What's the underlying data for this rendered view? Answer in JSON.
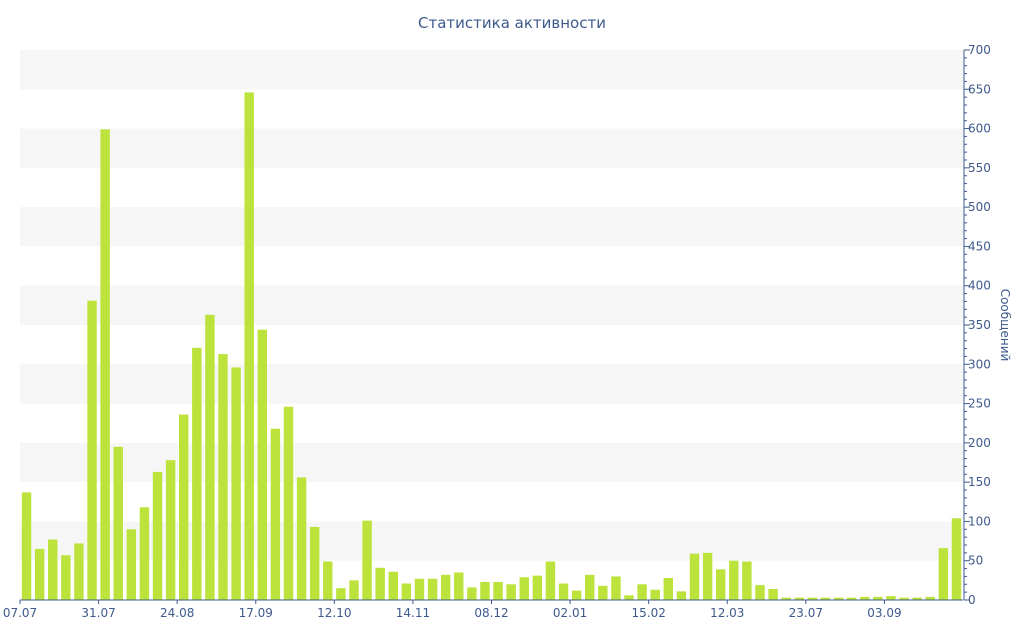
{
  "chart_data": {
    "type": "bar",
    "title": "Статистика активности",
    "ylabel": "Сообщений",
    "xlabel": "",
    "ylim": [
      0,
      700
    ],
    "y_ticks": [
      0,
      50,
      100,
      150,
      200,
      250,
      300,
      350,
      400,
      450,
      500,
      550,
      600,
      650,
      700
    ],
    "y_axis_side": "right",
    "x_tick_labels": [
      {
        "index": 0,
        "label": "07.07"
      },
      {
        "index": 6,
        "label": "31.07"
      },
      {
        "index": 12,
        "label": "24.08"
      },
      {
        "index": 18,
        "label": "17.09"
      },
      {
        "index": 24,
        "label": "12.10"
      },
      {
        "index": 30,
        "label": "14.11"
      },
      {
        "index": 36,
        "label": "08.12"
      },
      {
        "index": 42,
        "label": "02.01"
      },
      {
        "index": 48,
        "label": "15.02"
      },
      {
        "index": 54,
        "label": "12.03"
      },
      {
        "index": 60,
        "label": "23.07"
      },
      {
        "index": 66,
        "label": "03.09"
      }
    ],
    "values": [
      137,
      65,
      77,
      57,
      72,
      381,
      599,
      195,
      90,
      118,
      163,
      178,
      236,
      321,
      363,
      313,
      296,
      646,
      344,
      218,
      246,
      156,
      93,
      49,
      15,
      25,
      101,
      41,
      36,
      21,
      27,
      27,
      32,
      35,
      16,
      23,
      23,
      20,
      29,
      31,
      49,
      21,
      12,
      32,
      18,
      30,
      6,
      20,
      13,
      28,
      11,
      59,
      60,
      39,
      50,
      49,
      19,
      14,
      3,
      3,
      3,
      3,
      3,
      3,
      4,
      4,
      5,
      3,
      3,
      4,
      66,
      104
    ],
    "bar_color": "#bce33c",
    "axis_color": "#3e5a8c",
    "grid_band_color": "#f6f6f6",
    "grid": "horizontal bands"
  }
}
